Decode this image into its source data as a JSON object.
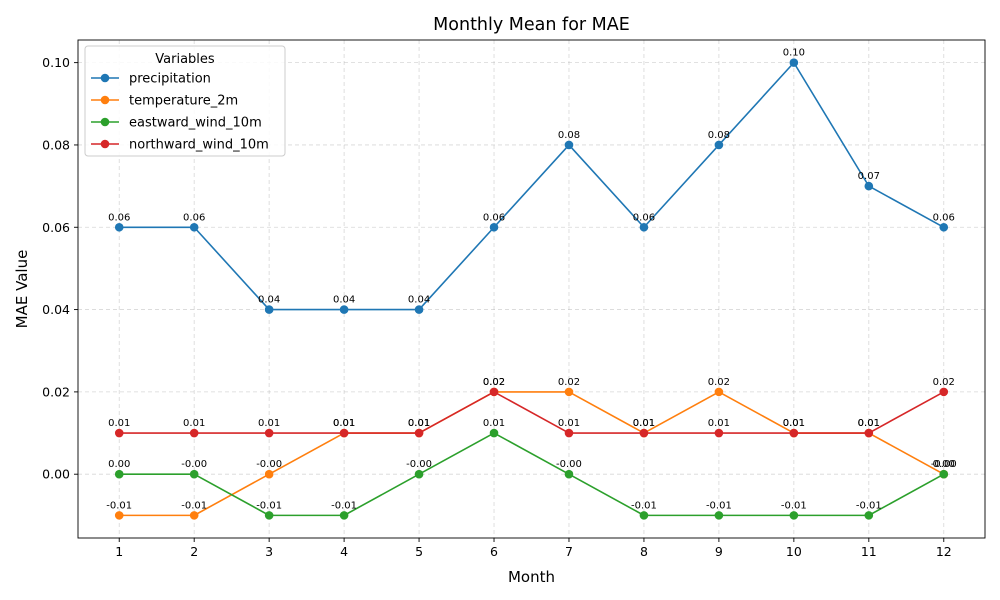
{
  "chart_data": {
    "type": "line",
    "title": "Monthly Mean for MAE",
    "xlabel": "Month",
    "ylabel": "MAE Value",
    "x": [
      1,
      2,
      3,
      4,
      5,
      6,
      7,
      8,
      9,
      10,
      11,
      12
    ],
    "x_ticks": [
      "1",
      "2",
      "3",
      "4",
      "5",
      "6",
      "7",
      "8",
      "9",
      "10",
      "11",
      "12"
    ],
    "y_ticks": [
      "0.00",
      "0.02",
      "0.04",
      "0.06",
      "0.08",
      "0.10"
    ],
    "ylim": [
      -0.0155,
      0.1055
    ],
    "xlim": [
      0.45,
      12.55
    ],
    "grid": true,
    "legend": {
      "title": "Variables",
      "position": "top-left"
    },
    "series": [
      {
        "name": "precipitation",
        "color": "#1f77b4",
        "values": [
          0.06,
          0.06,
          0.04,
          0.04,
          0.04,
          0.06,
          0.08,
          0.06,
          0.08,
          0.1,
          0.07,
          0.06
        ],
        "labels": [
          "0.06",
          "0.06",
          "0.04",
          "0.04",
          "0.04",
          "0.06",
          "0.08",
          "0.06",
          "0.08",
          "0.10",
          "0.07",
          "0.06"
        ]
      },
      {
        "name": "temperature_2m",
        "color": "#ff7f0e",
        "values": [
          -0.01,
          -0.01,
          0.0,
          0.01,
          0.01,
          0.02,
          0.02,
          0.01,
          0.02,
          0.01,
          0.01,
          0.0
        ],
        "labels": [
          "-0.01",
          "-0.01",
          "-0.00",
          "0.01",
          "0.01",
          "0.02",
          "0.02",
          "0.01",
          "0.02",
          "0.01",
          "0.01",
          "-0.00"
        ]
      },
      {
        "name": "eastward_wind_10m",
        "color": "#2ca02c",
        "values": [
          0.0,
          0.0,
          -0.01,
          -0.01,
          0.0,
          0.01,
          0.0,
          -0.01,
          -0.01,
          -0.01,
          -0.01,
          0.0
        ],
        "labels": [
          "0.00",
          "-0.00",
          "-0.01",
          "-0.01",
          "-0.00",
          "0.01",
          "-0.00",
          "-0.01",
          "-0.01",
          "-0.01",
          "-0.01",
          "0.00"
        ]
      },
      {
        "name": "northward_wind_10m",
        "color": "#d62728",
        "values": [
          0.01,
          0.01,
          0.01,
          0.01,
          0.01,
          0.02,
          0.01,
          0.01,
          0.01,
          0.01,
          0.01,
          0.02
        ],
        "labels": [
          "0.01",
          "0.01",
          "0.01",
          "0.01",
          "0.01",
          "0.02",
          "0.01",
          "0.01",
          "0.01",
          "0.01",
          "0.01",
          "0.02"
        ]
      }
    ]
  }
}
